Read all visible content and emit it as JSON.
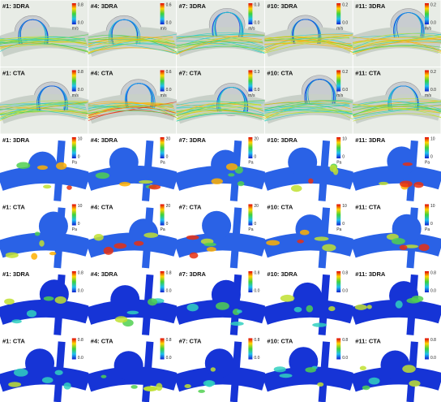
{
  "rows": [
    {
      "panels": [
        {
          "label": "#1: 3DRA",
          "scale_max": "0.8",
          "scale_min": "0.0",
          "unit": "m/s"
        },
        {
          "label": "#4: 3DRA",
          "scale_max": "0.6",
          "scale_min": "0.0",
          "unit": "m/s"
        },
        {
          "label": "#7: 3DRA",
          "scale_max": "0.3",
          "scale_min": "0.0",
          "unit": "m/s"
        },
        {
          "label": "#10: 3DRA",
          "scale_max": "0.2",
          "scale_min": "0.0",
          "unit": "m/s"
        },
        {
          "label": "#11: 3DRA",
          "scale_max": "0.2",
          "scale_min": "0.0",
          "unit": "m/s"
        }
      ]
    },
    {
      "panels": [
        {
          "label": "#1: CTA",
          "scale_max": "0.8",
          "scale_min": "0.0",
          "unit": "m/s"
        },
        {
          "label": "#4: CTA",
          "scale_max": "0.6",
          "scale_min": "0.0",
          "unit": "m/s"
        },
        {
          "label": "#7: CTA",
          "scale_max": "0.3",
          "scale_min": "0.0",
          "unit": "m/s"
        },
        {
          "label": "#10: CTA",
          "scale_max": "0.2",
          "scale_min": "0.0",
          "unit": "m/s"
        },
        {
          "label": "#11: CTA",
          "scale_max": "0.2",
          "scale_min": "0.0",
          "unit": "m/s"
        }
      ]
    },
    {
      "panels": [
        {
          "label": "#1: 3DRA",
          "scale_max": "10",
          "scale_min": "0",
          "unit": "Pa"
        },
        {
          "label": "#4: 3DRA",
          "scale_max": "20",
          "scale_min": "0",
          "unit": "Pa"
        },
        {
          "label": "#7: 3DRA",
          "scale_max": "20",
          "scale_min": "0",
          "unit": "Pa"
        },
        {
          "label": "#10: 3DRA",
          "scale_max": "10",
          "scale_min": "0",
          "unit": "Pa"
        },
        {
          "label": "#11: 3DRA",
          "scale_max": "10",
          "scale_min": "0",
          "unit": "Pa"
        }
      ]
    },
    {
      "panels": [
        {
          "label": "#1: CTA",
          "scale_max": "10",
          "scale_min": "0",
          "unit": "Pa"
        },
        {
          "label": "#4: CTA",
          "scale_max": "20",
          "scale_min": "0",
          "unit": "Pa"
        },
        {
          "label": "#7: CTA",
          "scale_max": "20",
          "scale_min": "0",
          "unit": "Pa"
        },
        {
          "label": "#10: CTA",
          "scale_max": "10",
          "scale_min": "0",
          "unit": "Pa"
        },
        {
          "label": "#11: CTA",
          "scale_max": "10",
          "scale_min": "0",
          "unit": "Pa"
        }
      ]
    },
    {
      "panels": [
        {
          "label": "#1: 3DRA",
          "scale_max": "0.8",
          "scale_min": "0.0"
        },
        {
          "label": "#4: 3DRA",
          "scale_max": "0.8",
          "scale_min": "0.0"
        },
        {
          "label": "#7: 3DRA",
          "scale_max": "0.8",
          "scale_min": "0.0"
        },
        {
          "label": "#10: 3DRA",
          "scale_max": "0.8",
          "scale_min": "0.0"
        },
        {
          "label": "#11: 3DRA",
          "scale_max": "0.8",
          "scale_min": "0.0"
        }
      ]
    },
    {
      "panels": [
        {
          "label": "#1: CTA",
          "scale_max": "0.8",
          "scale_min": "0.0"
        },
        {
          "label": "#4: CTA",
          "scale_max": "0.8",
          "scale_min": "0.0"
        },
        {
          "label": "#7: CTA",
          "scale_max": "0.8",
          "scale_min": "0.0"
        },
        {
          "label": "#10: CTA",
          "scale_max": "0.8",
          "scale_min": "0.0"
        },
        {
          "label": "#11: CTA",
          "scale_max": "0.8",
          "scale_min": "0.0"
        }
      ]
    }
  ]
}
